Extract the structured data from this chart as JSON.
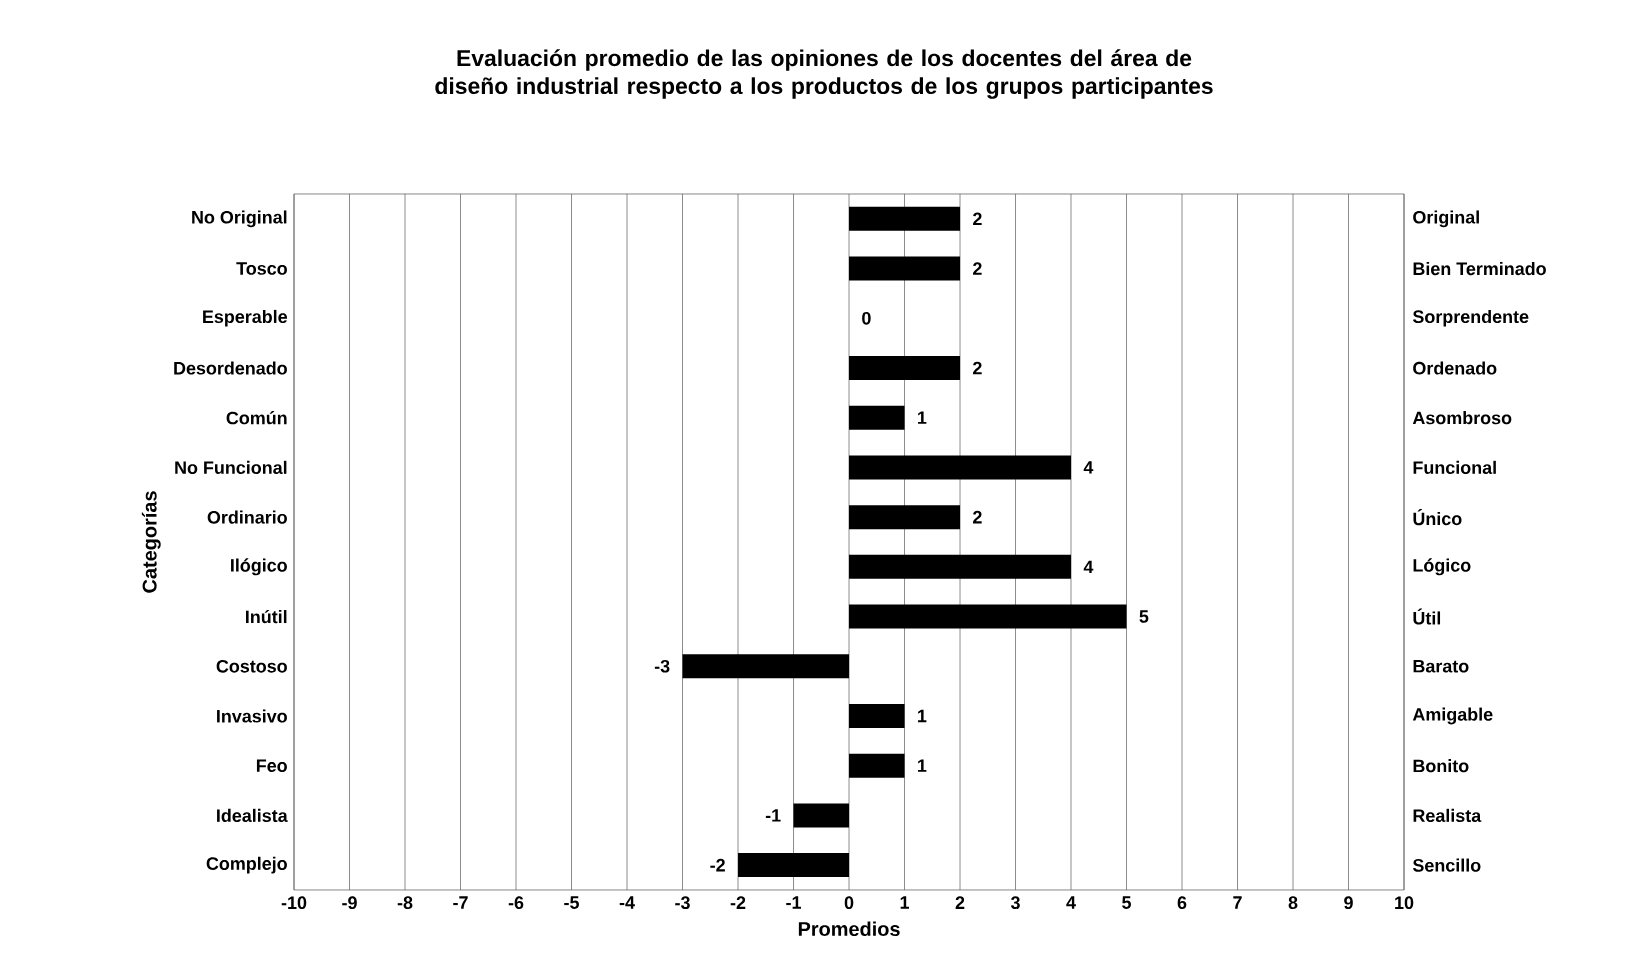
{
  "chart_data": {
    "type": "bar",
    "orientation": "horizontal",
    "title": "Evaluación promedio de las opiniones de los docentes del área de diseño industrial  respecto a los  productos de los grupos participantes",
    "xlabel": "Promedios",
    "ylabel": "Categorías",
    "categories": [
      "No Original",
      "Tosco",
      "Esperable",
      "Desordenado",
      "Común",
      "No Funcional",
      "Ordinario",
      "Ilógico",
      "Inútil",
      "Costoso",
      "Invasivo",
      "Feo",
      "Idealista",
      "Complejo"
    ],
    "y2_categories": [
      "Original",
      "Bien Terminado",
      "Sorprendente",
      "Ordenado",
      "Asombroso",
      "Funcional",
      "Único",
      "Lógico",
      "Útil",
      "Barato",
      "Amigable",
      "Bonito",
      "Realista",
      "Sencillo"
    ],
    "values": [
      2,
      2,
      0,
      2,
      1,
      4,
      2,
      4,
      5,
      -3,
      1,
      1,
      -1,
      -2
    ],
    "color": "#000000",
    "xlim": [
      -10,
      10
    ],
    "xticks": [
      -10,
      -9,
      -8,
      -7,
      -6,
      -5,
      -4,
      -3,
      -2,
      -1,
      0,
      1,
      2,
      3,
      4,
      5,
      6,
      7,
      8,
      9,
      10
    ],
    "grid": "x",
    "data_labels": true
  }
}
